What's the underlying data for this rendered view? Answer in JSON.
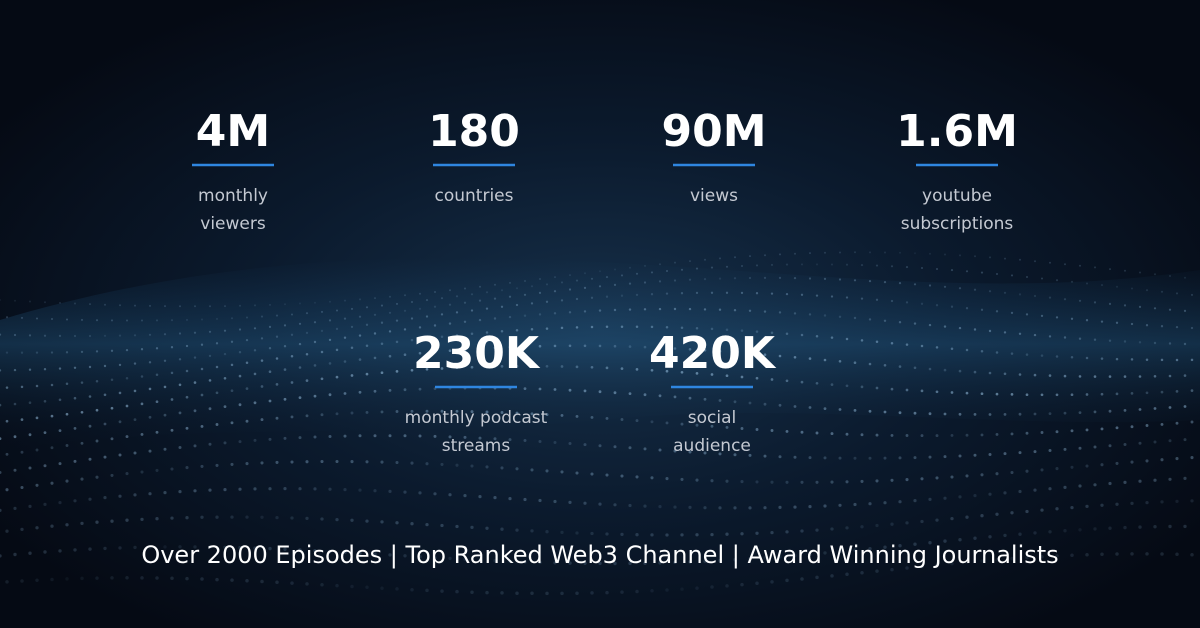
{
  "stats": [
    {
      "value": "4M",
      "label": [
        "monthly",
        "viewers"
      ]
    },
    {
      "value": "180",
      "label": [
        "countries"
      ]
    },
    {
      "value": "90M",
      "label": [
        "views"
      ]
    },
    {
      "value": "1.6M",
      "label": [
        "youtube",
        "subscriptions"
      ]
    },
    {
      "value": "230K",
      "label": [
        "monthly podcast",
        "streams"
      ]
    },
    {
      "value": "420K",
      "label": [
        "social",
        "audience"
      ]
    }
  ],
  "footer": "Over 2000 Episodes | Top Ranked Web3 Channel | Award Winning Journalists"
}
